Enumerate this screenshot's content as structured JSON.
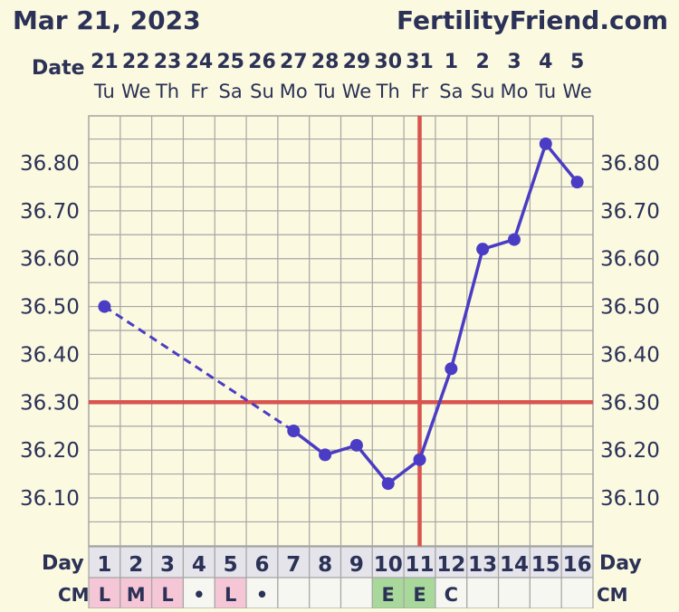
{
  "header": {
    "date": "Mar 21, 2023",
    "site": "FertilityFriend.com"
  },
  "labels": {
    "date_row": "Date",
    "day_row": "Day",
    "cm_row": "CM"
  },
  "colors": {
    "background": "#fbf9df",
    "grid": "#a6a6a6",
    "temp_line": "#4a3cc4",
    "coverline": "#d9534f",
    "text": "#2b3157",
    "cm_pink": "#f5c6d6",
    "cm_green": "#a8d99b",
    "day_cell": "#e4e4ea"
  },
  "chart_data": {
    "type": "line",
    "x_dates": [
      "21",
      "22",
      "23",
      "24",
      "25",
      "26",
      "27",
      "28",
      "29",
      "30",
      "31",
      "1",
      "2",
      "3",
      "4",
      "5"
    ],
    "x_weekdays": [
      "Tu",
      "We",
      "Th",
      "Fr",
      "Sa",
      "Su",
      "Mo",
      "Tu",
      "We",
      "Th",
      "Fr",
      "Sa",
      "Su",
      "Mo",
      "Tu",
      "We"
    ],
    "cycle_days": [
      "1",
      "2",
      "3",
      "4",
      "5",
      "6",
      "7",
      "8",
      "9",
      "10",
      "11",
      "12",
      "13",
      "14",
      "15",
      "16"
    ],
    "ylim": [
      36.0,
      36.9
    ],
    "y_ticks": [
      "36.10",
      "36.20",
      "36.30",
      "36.40",
      "36.50",
      "36.60",
      "36.70",
      "36.80"
    ],
    "series": [
      {
        "values": [
          36.5,
          null,
          null,
          null,
          null,
          null,
          36.24,
          36.19,
          36.21,
          36.13,
          36.18,
          36.37,
          36.62,
          36.64,
          36.84,
          36.76
        ]
      }
    ],
    "gap_dashed": [
      1,
      7
    ],
    "coverline": 36.3,
    "ovulation_day": 11,
    "cm": [
      "L",
      "M",
      "L",
      "•",
      "L",
      "•",
      "",
      "",
      "",
      "E",
      "E",
      "C",
      "",
      "",
      "",
      ""
    ],
    "cm_colors": [
      "pink",
      "pink",
      "pink",
      "",
      "pink",
      "",
      "",
      "",
      "",
      "green",
      "green",
      "",
      "",
      "",
      "",
      ""
    ]
  }
}
